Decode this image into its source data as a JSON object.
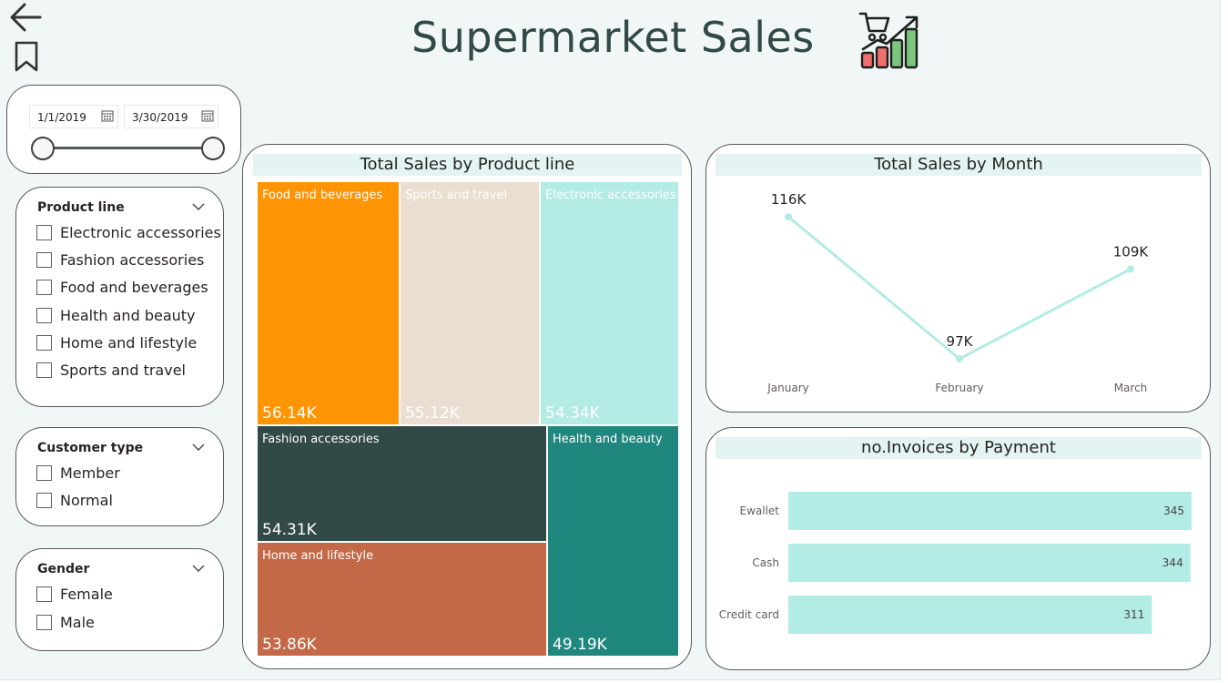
{
  "header": {
    "title": "Supermarket Sales",
    "logo_icon": "shopping-cart-growth-chart-icon"
  },
  "nav": {
    "back_icon": "arrow-left-icon",
    "bookmark_icon": "bookmark-icon"
  },
  "date_slicer": {
    "start_date": "1/1/2019",
    "end_date": "3/30/2019",
    "calendar_icon": "calendar-icon"
  },
  "slicers": {
    "product_line": {
      "header": "Product line",
      "options": [
        {
          "label": "Electronic accessories",
          "checked": false
        },
        {
          "label": "Fashion accessories",
          "checked": false
        },
        {
          "label": "Food and beverages",
          "checked": false
        },
        {
          "label": "Health and beauty",
          "checked": false
        },
        {
          "label": "Home and lifestyle",
          "checked": false
        },
        {
          "label": "Sports and travel",
          "checked": false
        }
      ]
    },
    "customer_type": {
      "header": "Customer type",
      "options": [
        {
          "label": "Member",
          "checked": false
        },
        {
          "label": "Normal",
          "checked": false
        }
      ]
    },
    "gender": {
      "header": "Gender",
      "options": [
        {
          "label": "Female",
          "checked": false
        },
        {
          "label": "Male",
          "checked": false
        }
      ]
    }
  },
  "colors": {
    "food_and_beverages": "#ff9505",
    "sports_and_travel": "#eaded0",
    "electronic_accessories": "#b3ebe5",
    "fashion_accessories": "#314a47",
    "health_and_beauty": "#20877e",
    "home_and_lifestyle": "#c46947",
    "line": "#b3ebe5",
    "bar": "#b3ebe5",
    "title_band": "#e3f4f2"
  },
  "chart_data": [
    {
      "type": "treemap",
      "title": "Total Sales by Product line",
      "items": [
        {
          "name": "Food and beverages",
          "value": 56.14,
          "label": "56.14K"
        },
        {
          "name": "Sports and travel",
          "value": 55.12,
          "label": "55.12K"
        },
        {
          "name": "Electronic accessories",
          "value": 54.34,
          "label": "54.34K"
        },
        {
          "name": "Fashion accessories",
          "value": 54.31,
          "label": "54.31K"
        },
        {
          "name": "Home and lifestyle",
          "value": 53.86,
          "label": "53.86K"
        },
        {
          "name": "Health and beauty",
          "value": 49.19,
          "label": "49.19K"
        }
      ],
      "unit": "K"
    },
    {
      "type": "line",
      "title": "Total Sales by Month",
      "categories": [
        "January",
        "February",
        "March"
      ],
      "values": [
        116,
        97,
        109
      ],
      "data_labels": [
        "116K",
        "97K",
        "109K"
      ],
      "unit": "K",
      "ylim": [
        97,
        116
      ]
    },
    {
      "type": "bar",
      "orientation": "horizontal",
      "title": "no.Invoices by Payment",
      "categories": [
        "Ewallet",
        "Cash",
        "Credit card"
      ],
      "values": [
        345,
        344,
        311
      ],
      "xlim": [
        0,
        345
      ]
    }
  ]
}
